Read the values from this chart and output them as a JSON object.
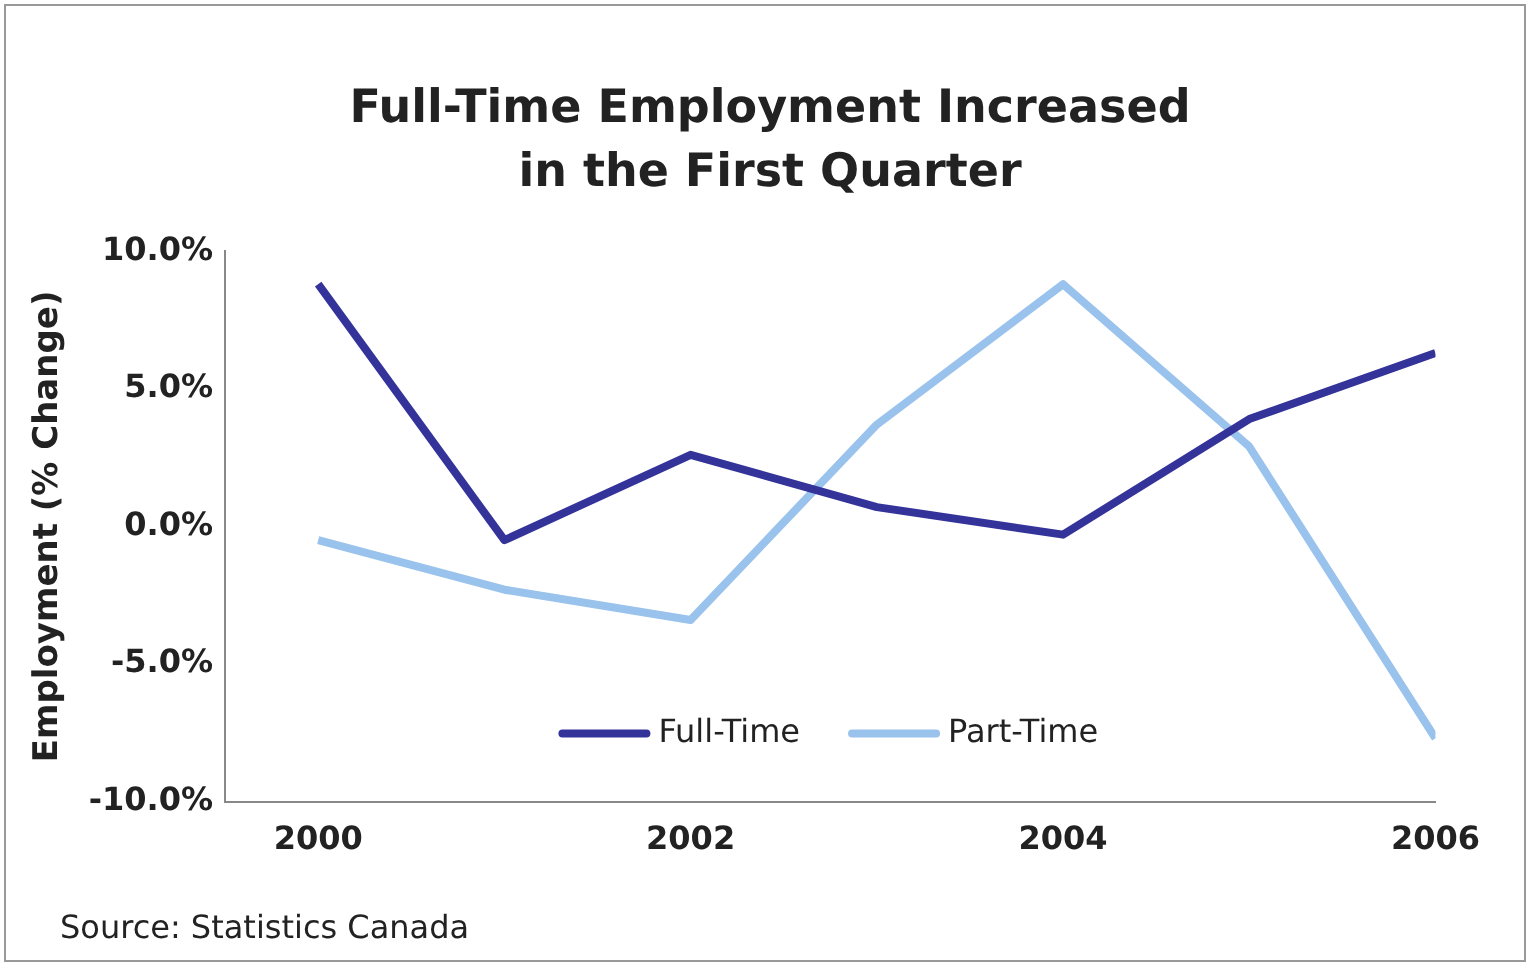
{
  "chart_data": {
    "type": "line",
    "title": "Full-Time Employment Increased in the First Quarter",
    "ylabel": "Employment (% Change)",
    "x": [
      2000,
      2001,
      2002,
      2003,
      2004,
      2005,
      2006
    ],
    "series": [
      {
        "name": "Full-Time",
        "color": "#33339a",
        "values": [
          8.8,
          -0.5,
          2.6,
          0.7,
          -0.3,
          3.9,
          6.3
        ]
      },
      {
        "name": "Part-Time",
        "color": "#99c2ec",
        "values": [
          -0.5,
          -2.3,
          -3.4,
          3.7,
          8.8,
          2.9,
          -7.7
        ]
      }
    ],
    "xlim": [
      1999.5,
      2006
    ],
    "xticks": [
      2000,
      2002,
      2004,
      2006
    ],
    "ylim": [
      -10,
      10
    ],
    "yticks": [
      {
        "value": -10,
        "label": "-10.0%"
      },
      {
        "value": -5,
        "label": "-5.0%"
      },
      {
        "value": 0,
        "label": "0.0%"
      },
      {
        "value": 5,
        "label": "5.0%"
      },
      {
        "value": 10,
        "label": "10.0%"
      }
    ],
    "grid": false,
    "legend": "bottom",
    "marker": "none",
    "line_style": "solid",
    "annotations": [
      "Source: Statistics Canada"
    ]
  }
}
